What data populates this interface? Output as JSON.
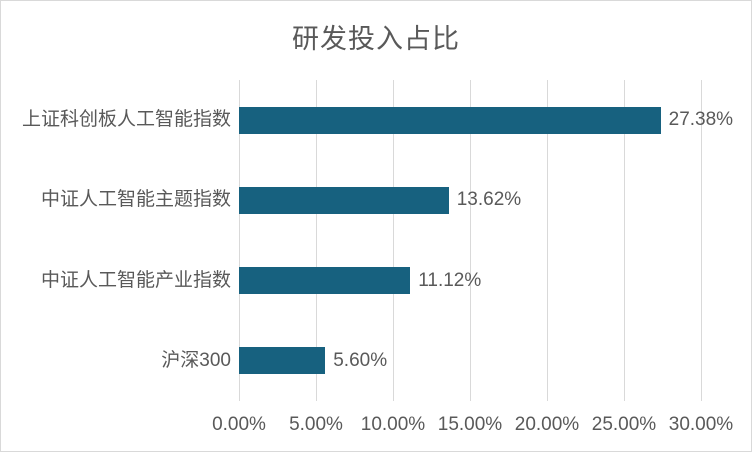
{
  "chart_data": {
    "type": "bar",
    "orientation": "horizontal",
    "title": "研发投入占比",
    "categories": [
      "上证科创板人工智能指数",
      "中证人工智能主题指数",
      "中证人工智能产业指数",
      "沪深300"
    ],
    "values": [
      27.38,
      13.62,
      11.12,
      5.6
    ],
    "value_labels": [
      "27.38%",
      "13.62%",
      "11.12%",
      "5.60%"
    ],
    "xlabel": "",
    "ylabel": "",
    "xlim": [
      0,
      30
    ],
    "x_ticks": [
      0,
      5,
      10,
      15,
      20,
      25,
      30
    ],
    "x_tick_labels": [
      "0.00%",
      "5.00%",
      "10.00%",
      "15.00%",
      "20.00%",
      "25.00%",
      "30.00%"
    ],
    "grid": true,
    "legend_position": "none",
    "colors": {
      "bar": "#17617F",
      "gridline": "#D9D9D9",
      "text": "#595959",
      "border": "#D9D9D9",
      "background": "#FFFFFF"
    }
  }
}
